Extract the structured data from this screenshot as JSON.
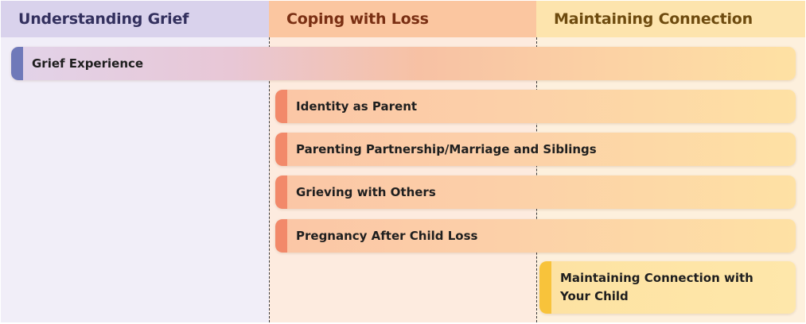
{
  "columns": [
    {
      "title": "Understanding Grief",
      "color": "#d9d2ec"
    },
    {
      "title": "Coping with Loss",
      "color": "#fbc6a0"
    },
    {
      "title": "Maintaining Connection",
      "color": "#fde4ad"
    }
  ],
  "bars": {
    "grief_experience": "Grief Experience",
    "identity_as_parent": "Identity as Parent",
    "partnership": "Parenting Partnership/Marriage and Siblings",
    "grieving_with_others": "Grieving with Others",
    "pregnancy_after_loss": "Pregnancy After Child Loss",
    "maintaining_connection": "Maintaining Connection with Your Child"
  },
  "accent_colors": {
    "grief": "#6f79b9",
    "coping": "#f2896a",
    "connection": "#f8c33b"
  }
}
